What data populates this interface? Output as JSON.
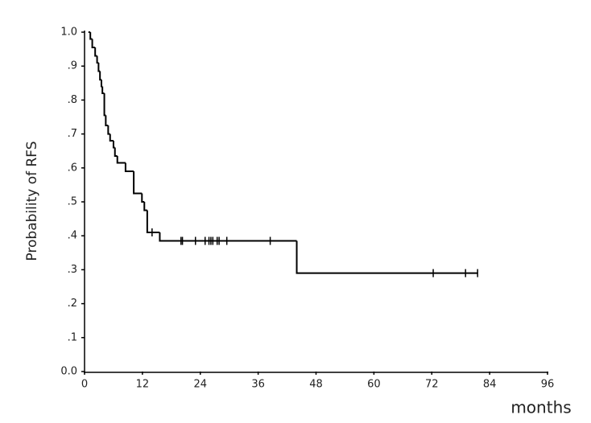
{
  "chart_data": {
    "type": "step",
    "ylabel": "Probability of RFS",
    "xlabel": "months",
    "color": "#000000",
    "x": [
      0.8,
      1.2,
      1.6,
      2.2,
      2.6,
      2.9,
      3.2,
      3.5,
      3.7,
      4.1,
      4.4,
      4.9,
      5.3,
      6.0,
      6.3,
      6.8,
      8.5,
      10.2,
      11.9,
      12.4,
      13.0,
      15.6,
      44,
      81.5
    ],
    "values": [
      1.0,
      0.98,
      0.955,
      0.93,
      0.91,
      0.885,
      0.86,
      0.84,
      0.82,
      0.755,
      0.725,
      0.7,
      0.68,
      0.66,
      0.635,
      0.615,
      0.59,
      0.525,
      0.5,
      0.475,
      0.41,
      0.385,
      0.29,
      0.29
    ],
    "censor_x": [
      14,
      20,
      20.3,
      23,
      25,
      25.8,
      26.2,
      26.6,
      27.5,
      27.9,
      29.5,
      38.5,
      72.3,
      79,
      81.5
    ],
    "censor_values": [
      0.41,
      0.385,
      0.385,
      0.385,
      0.385,
      0.385,
      0.385,
      0.385,
      0.385,
      0.385,
      0.385,
      0.385,
      0.29,
      0.29,
      0.29
    ],
    "xlim": [
      0,
      96
    ],
    "xticks": [
      0,
      12,
      24,
      36,
      48,
      60,
      72,
      84,
      96
    ],
    "ylim": [
      0,
      1
    ],
    "yticks": [
      {
        "value": 0,
        "label": "0.0"
      },
      {
        "value": 0.1,
        "label": ".1"
      },
      {
        "value": 0.2,
        "label": ".2"
      },
      {
        "value": 0.3,
        "label": ".3"
      },
      {
        "value": 0.4,
        "label": ".4"
      },
      {
        "value": 0.5,
        "label": ".5"
      },
      {
        "value": 0.6,
        "label": ".6"
      },
      {
        "value": 0.7,
        "label": ".7"
      },
      {
        "value": 0.8,
        "label": ".8"
      },
      {
        "value": 0.9,
        "label": ".9"
      },
      {
        "value": 1,
        "label": "1.0"
      }
    ]
  }
}
